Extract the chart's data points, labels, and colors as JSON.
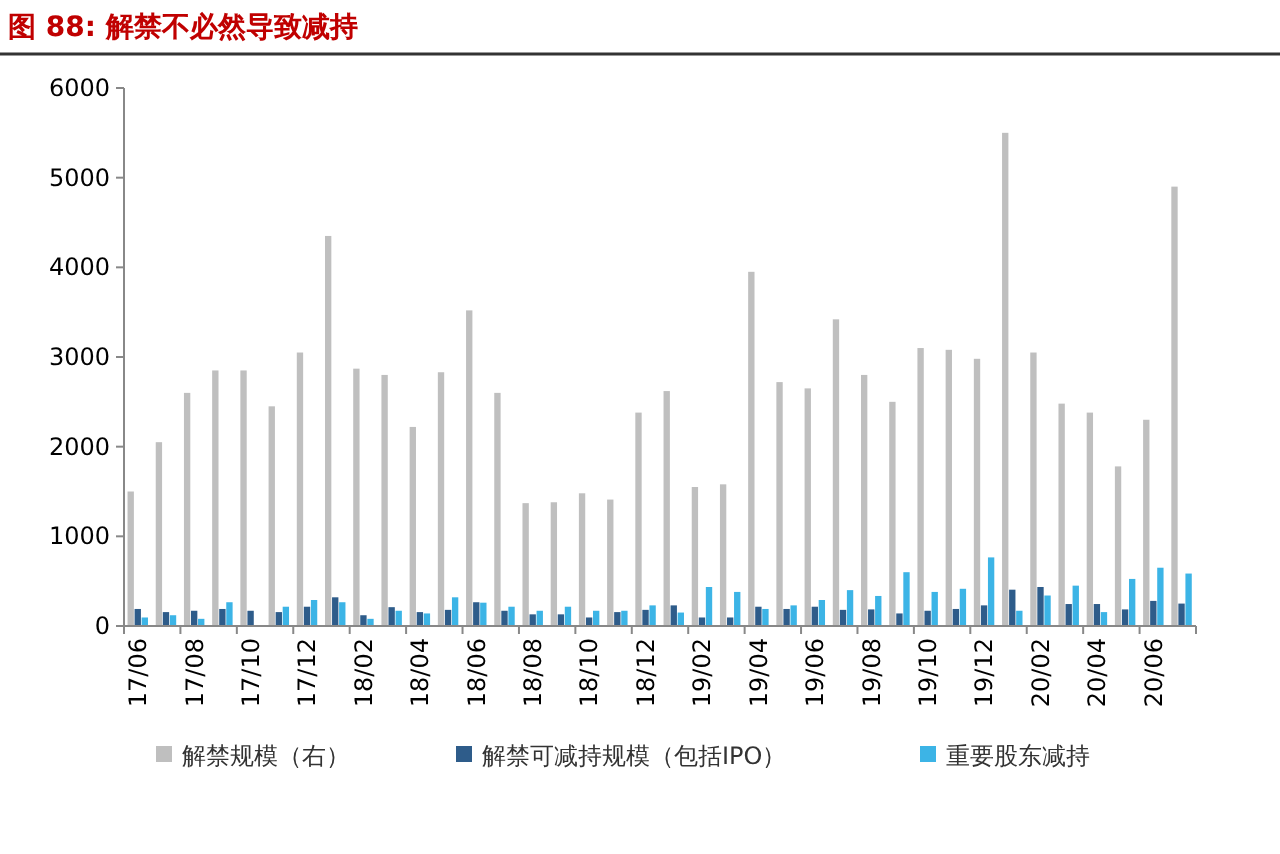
{
  "chart_data": {
    "type": "bar",
    "title": "图 88: 解禁不必然导致减持",
    "categories": [
      "17/06",
      null,
      "17/08",
      null,
      "17/10",
      null,
      "17/12",
      null,
      "18/02",
      null,
      "18/04",
      null,
      "18/06",
      null,
      "18/08",
      null,
      "18/10",
      null,
      "18/12",
      null,
      "19/02",
      null,
      "19/04",
      null,
      "19/06",
      null,
      "19/08",
      null,
      "19/10",
      null,
      "19/12",
      null,
      "20/02",
      null,
      "20/04",
      null,
      "20/06",
      null
    ],
    "series": [
      {
        "name": "解禁规模（右）",
        "color": "#bfbfbf",
        "values": [
          1500,
          2050,
          2600,
          2850,
          2850,
          2450,
          3050,
          4350,
          2870,
          2800,
          2220,
          2830,
          3520,
          2600,
          1370,
          1380,
          1480,
          1410,
          2380,
          2620,
          1550,
          1580,
          3950,
          2720,
          2650,
          3420,
          2800,
          2500,
          3100,
          3080,
          2980,
          5500,
          3050,
          2480,
          2380,
          1780,
          2300,
          4900
        ]
      },
      {
        "name": "解禁可减持规模（包括IPO）",
        "color": "#2e5c8a",
        "values": [
          190,
          155,
          170,
          190,
          170,
          155,
          215,
          320,
          120,
          210,
          155,
          180,
          265,
          170,
          130,
          130,
          95,
          155,
          180,
          230,
          95,
          95,
          215,
          190,
          215,
          180,
          185,
          140,
          170,
          190,
          230,
          405,
          435,
          245,
          245,
          185,
          280,
          250
        ]
      },
      {
        "name": "重要股东减持",
        "color": "#3cb4e6",
        "values": [
          95,
          120,
          80,
          265,
          10,
          215,
          290,
          265,
          80,
          170,
          140,
          320,
          260,
          215,
          170,
          215,
          170,
          170,
          230,
          150,
          435,
          380,
          190,
          230,
          290,
          400,
          335,
          600,
          380,
          415,
          765,
          170,
          340,
          450,
          155,
          525,
          650,
          585
        ]
      }
    ],
    "ylim": [
      0,
      6000
    ],
    "yticks": [
      0,
      1000,
      2000,
      3000,
      4000,
      5000,
      6000
    ],
    "grid": false,
    "legend": "bottom"
  }
}
